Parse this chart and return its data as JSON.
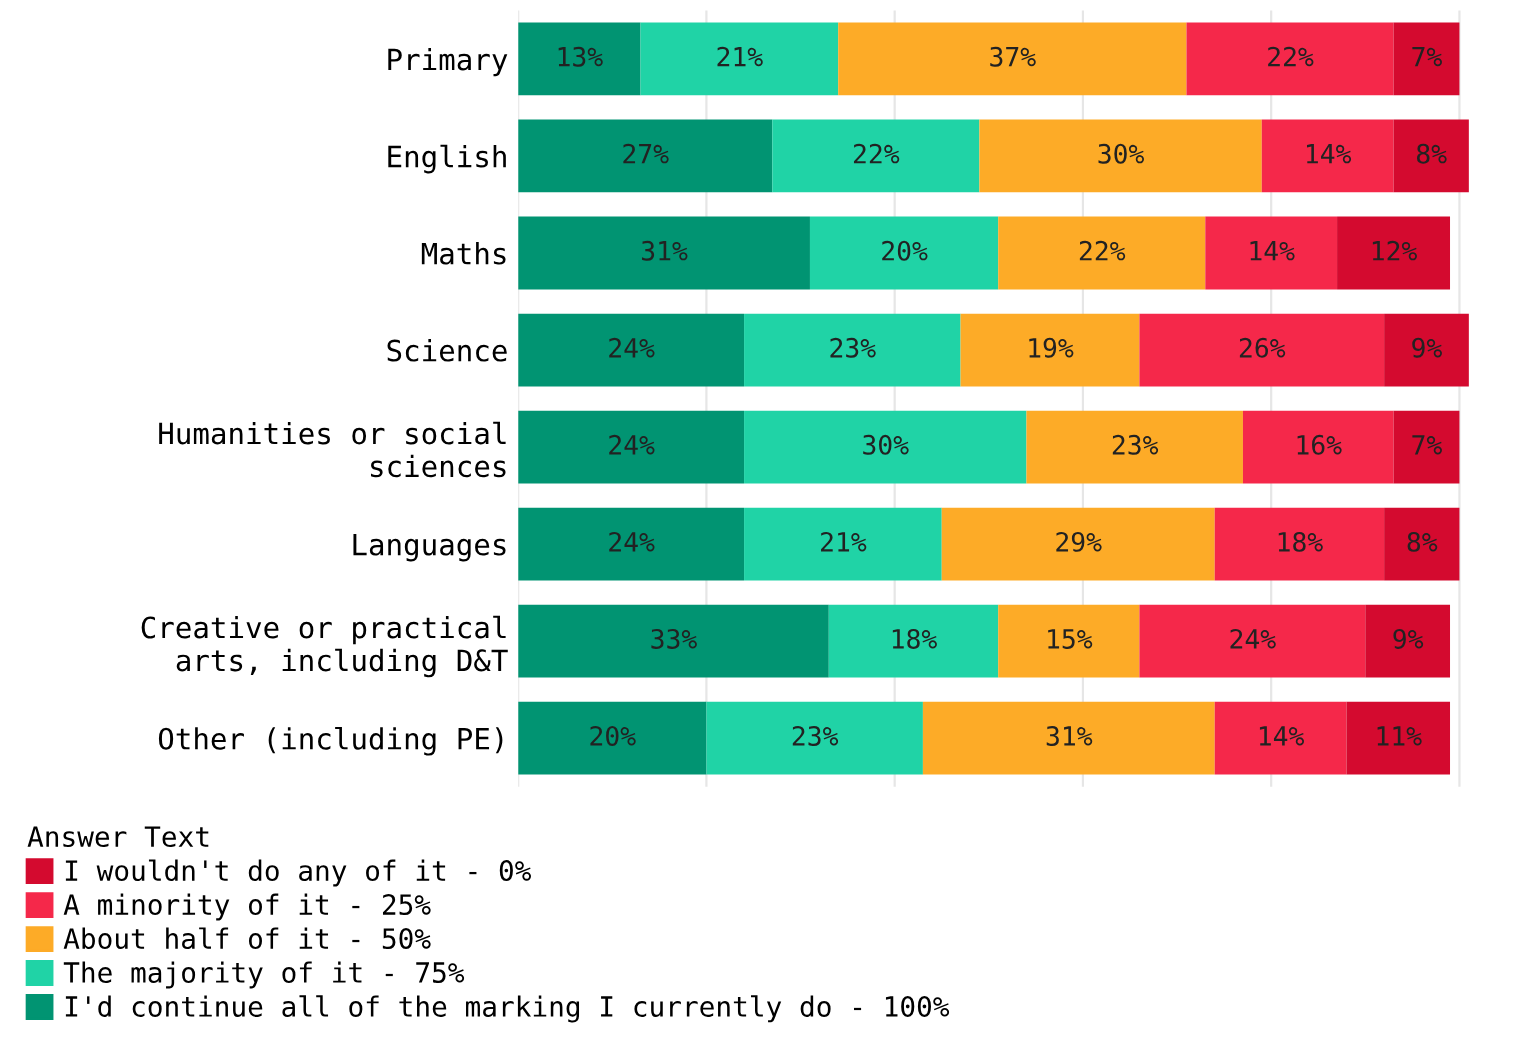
{
  "chart_data": {
    "type": "bar",
    "orientation": "horizontal",
    "stacked": true,
    "categories": [
      "Primary",
      "English",
      "Maths",
      "Science",
      "Humanities or social sciences",
      "Languages",
      "Creative or practical arts, including D&T",
      "Other (including PE)"
    ],
    "series": [
      {
        "name": "I'd continue all of the marking I currently do - 100%",
        "color": "#019472",
        "values": [
          13,
          27,
          31,
          24,
          24,
          24,
          33,
          20
        ],
        "value_labels": [
          "13%",
          "27%",
          "31%",
          "24%",
          "24%",
          "24%",
          "33%",
          "20%"
        ]
      },
      {
        "name": "The majority of it - 75%",
        "color": "#20d3a6",
        "values": [
          21,
          22,
          20,
          23,
          30,
          21,
          18,
          23
        ],
        "value_labels": [
          "21%",
          "22%",
          "20%",
          "23%",
          "30%",
          "21%",
          "18%",
          "23%"
        ]
      },
      {
        "name": "About half of it - 50%",
        "color": "#fdab27",
        "values": [
          37,
          30,
          22,
          19,
          23,
          29,
          15,
          31
        ],
        "value_labels": [
          "37%",
          "30%",
          "22%",
          "19%",
          "23%",
          "29%",
          "15%",
          "31%"
        ]
      },
      {
        "name": "A minority of it - 25%",
        "color": "#f5284a",
        "values": [
          22,
          14,
          14,
          26,
          16,
          18,
          24,
          14
        ],
        "value_labels": [
          "22%",
          "14%",
          "14%",
          "26%",
          "16%",
          "18%",
          "24%",
          "14%"
        ]
      },
      {
        "name": "I wouldn't do any of it - 0%",
        "color": "#d40a2f",
        "values": [
          7,
          8,
          12,
          9,
          7,
          8,
          9,
          11
        ],
        "value_labels": [
          "7%",
          "8%",
          "12%",
          "9%",
          "7%",
          "8%",
          "9%",
          "11%"
        ]
      }
    ],
    "legend_title": "Answer Text",
    "legend": "bottom left",
    "grid": "x",
    "tick_labels": "y"
  }
}
